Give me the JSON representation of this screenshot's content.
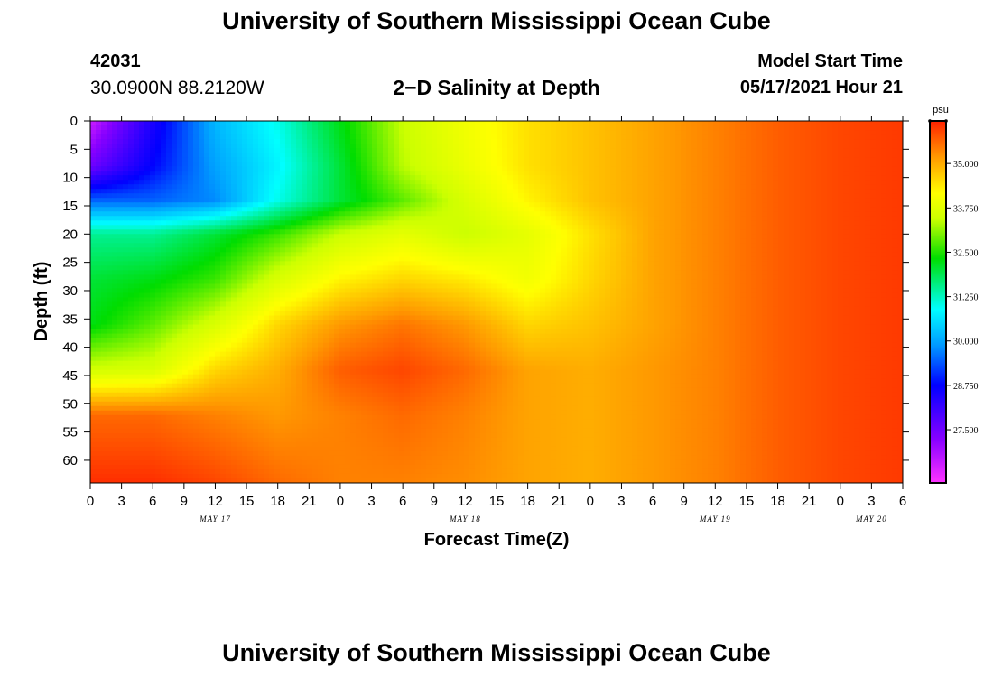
{
  "header": {
    "title": "University of Southern Mississippi Ocean Cube",
    "station_id": "42031",
    "station_location": "30.0900N  88.2120W",
    "start_label": "Model Start Time",
    "start_value": "05/17/2021 Hour 21"
  },
  "footer": {
    "title": "University of Southern Mississippi Ocean Cube"
  },
  "chart_data": {
    "type": "heatmap",
    "title": "2−D Salinity at Depth",
    "xlabel": "Forecast Time(Z)",
    "ylabel": "Depth (ft)",
    "x_ticks": [
      "0",
      "3",
      "6",
      "9",
      "12",
      "15",
      "18",
      "21",
      "0",
      "3",
      "6",
      "9",
      "12",
      "15",
      "18",
      "21",
      "0",
      "3",
      "6",
      "9",
      "12",
      "15",
      "18",
      "21",
      "0",
      "3",
      "6"
    ],
    "x_hours": [
      0,
      78
    ],
    "y_ticks": [
      "0",
      "5",
      "10",
      "15",
      "20",
      "25",
      "30",
      "35",
      "40",
      "45",
      "50",
      "55",
      "60"
    ],
    "y_range": [
      0,
      64
    ],
    "date_labels": [
      {
        "text": "MAY 17",
        "hour": 12
      },
      {
        "text": "MAY 18",
        "hour": 36
      },
      {
        "text": "MAY 19",
        "hour": 60
      },
      {
        "text": "MAY 20",
        "hour": 75
      }
    ],
    "colorbar": {
      "unit": "psu",
      "range": [
        26.0,
        36.2
      ],
      "ticks": [
        "35.000",
        "33.750",
        "32.500",
        "31.250",
        "30.000",
        "28.750",
        "27.500"
      ],
      "tick_values": [
        35.0,
        33.75,
        32.5,
        31.25,
        30.0,
        28.75,
        27.5
      ]
    },
    "grid_hours": [
      0,
      6,
      12,
      18,
      24,
      30,
      36,
      42,
      48,
      54,
      60,
      66,
      72,
      78
    ],
    "grid_depths": [
      0,
      8,
      14,
      20,
      28,
      36,
      44,
      52,
      64
    ],
    "salinity": [
      [
        26.5,
        28.5,
        30.2,
        31.0,
        32.2,
        33.4,
        34.0,
        34.5,
        34.8,
        35.1,
        35.4,
        35.7,
        35.9,
        36.0
      ],
      [
        27.5,
        28.8,
        30.0,
        30.8,
        32.0,
        33.3,
        33.9,
        34.5,
        34.8,
        35.1,
        35.4,
        35.7,
        35.9,
        36.0
      ],
      [
        29.5,
        29.5,
        29.8,
        31.0,
        32.0,
        32.8,
        33.6,
        34.3,
        34.8,
        35.1,
        35.4,
        35.7,
        35.9,
        36.0
      ],
      [
        31.5,
        31.5,
        32.0,
        32.6,
        33.4,
        33.8,
        33.4,
        33.8,
        34.5,
        35.1,
        35.4,
        35.7,
        35.9,
        36.0
      ],
      [
        32.0,
        32.2,
        32.6,
        33.6,
        34.3,
        34.6,
        34.4,
        34.0,
        34.6,
        35.1,
        35.4,
        35.7,
        35.9,
        36.0
      ],
      [
        32.2,
        32.8,
        33.6,
        34.6,
        35.2,
        35.5,
        35.2,
        34.6,
        34.8,
        35.1,
        35.4,
        35.7,
        35.9,
        36.0
      ],
      [
        33.5,
        33.6,
        34.6,
        35.0,
        35.7,
        35.9,
        35.6,
        35.1,
        35.0,
        35.2,
        35.4,
        35.7,
        35.9,
        36.0
      ],
      [
        35.6,
        35.6,
        35.4,
        35.2,
        35.4,
        35.6,
        35.4,
        35.1,
        35.0,
        35.2,
        35.4,
        35.7,
        35.9,
        36.0
      ],
      [
        36.1,
        36.1,
        35.9,
        35.6,
        35.4,
        35.4,
        35.3,
        35.1,
        35.0,
        35.2,
        35.4,
        35.7,
        35.9,
        36.0
      ]
    ]
  }
}
